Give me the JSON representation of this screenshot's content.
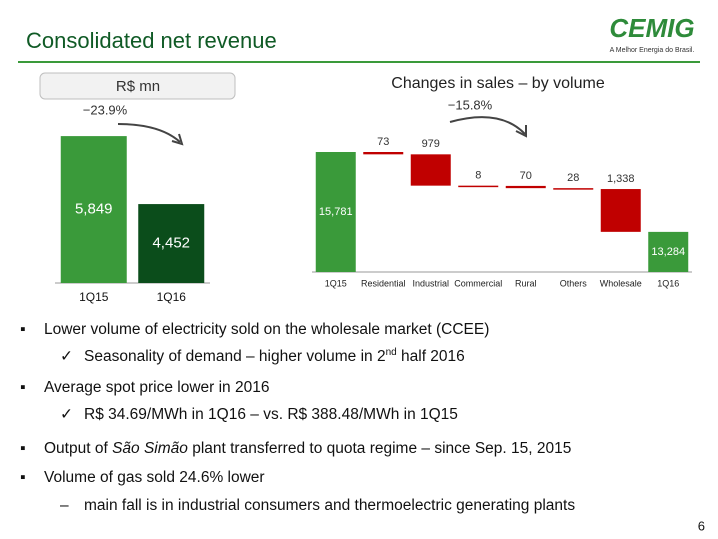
{
  "title": "Consolidated net revenue",
  "logo": {
    "name": "CEMIG",
    "tagline": "A Melhor Energia do Brasil."
  },
  "chart_data": [
    {
      "type": "bar",
      "unit_label": "R$ mn",
      "annotation": "−23.9%",
      "categories": [
        "1Q15",
        "1Q16"
      ],
      "values": [
        5849,
        4452
      ],
      "value_labels": [
        "5,849",
        "4,452"
      ],
      "colors": [
        "#3a9a3a",
        "#0b4d1b"
      ],
      "ylim": [
        2830,
        6180
      ]
    },
    {
      "type": "waterfall",
      "title": "Changes in sales – by volume",
      "annotation": "−15.8%",
      "categories": [
        "1Q15",
        "Residential",
        "Industrial",
        "Commercial",
        "Rural",
        "Others",
        "Wholesale",
        "1Q16"
      ],
      "values": [
        15781,
        -73,
        -979,
        -8,
        -70,
        -28,
        -1338,
        13284
      ],
      "value_labels": [
        "15,781",
        "73",
        "979",
        "8",
        "70",
        "28",
        "1,338",
        "13,284"
      ],
      "total_color": "#3a9a3a",
      "decrease_color": "#c00000",
      "ylim": [
        12030,
        16500
      ]
    }
  ],
  "bullets": [
    {
      "text": "Lower volume of electricity sold on the wholesale market (CCEE)",
      "sub": [
        {
          "text": "Seasonality of demand – higher volume in 2",
          "sup": "nd",
          "text_after": " half 2016"
        }
      ]
    },
    {
      "text": "Average spot price lower in 2016",
      "sub": [
        {
          "text": "R$ 34.69/MWh in 1Q16 – vs. R$ 388.48/MWh in 1Q15"
        }
      ]
    },
    {
      "text": "Output of ",
      "italic": "São Simão",
      "text_after": " plant transferred to quota regime – since Sep. 15, 2015"
    },
    {
      "text": "Volume of gas sold 24.6% lower",
      "sub": [
        {
          "text": "main fall is in industrial consumers and thermoelectric generating plants"
        }
      ]
    }
  ],
  "page_number": "6"
}
